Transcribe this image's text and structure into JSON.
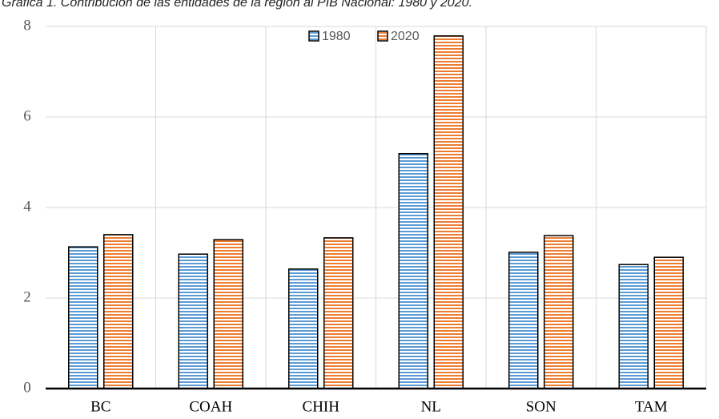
{
  "chart_data": {
    "type": "bar",
    "title": "Gráfica 1. Contribución de las entidades de la región al PIB Nacional: 1980 y 2020.",
    "categories": [
      "BC",
      "COAH",
      "CHIH",
      "NL",
      "SON",
      "TAM"
    ],
    "series": [
      {
        "name": "1980",
        "color": "#5b9bd5",
        "values": [
          3.13,
          2.97,
          2.64,
          5.19,
          3.01,
          2.74
        ]
      },
      {
        "name": "2020",
        "color": "#ed7d31",
        "values": [
          3.4,
          3.29,
          3.33,
          7.79,
          3.38,
          2.9
        ]
      }
    ],
    "ylim": [
      0,
      8
    ],
    "yticks": [
      0,
      2,
      4,
      6,
      8
    ],
    "grid": true,
    "legend": "top"
  }
}
